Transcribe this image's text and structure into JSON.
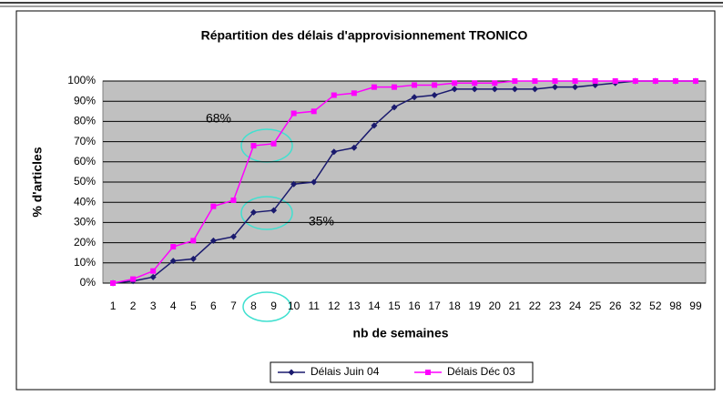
{
  "chart_data": {
    "type": "line",
    "title": "Répartition des délais d'approvisionnement TRONICO",
    "x_label": "nb de semaines",
    "y_label": "% d'articles",
    "categories": [
      "1",
      "2",
      "3",
      "4",
      "5",
      "6",
      "7",
      "8",
      "9",
      "10",
      "11",
      "12",
      "13",
      "14",
      "15",
      "16",
      "17",
      "18",
      "19",
      "20",
      "21",
      "22",
      "23",
      "24",
      "25",
      "26",
      "32",
      "52",
      "98",
      "99"
    ],
    "series": [
      {
        "name": "Délais Juin 04",
        "color": "#1a1a6e",
        "marker": "diamond",
        "values": [
          0,
          1,
          3,
          11,
          12,
          21,
          23,
          35,
          36,
          49,
          50,
          65,
          67,
          78,
          87,
          92,
          93,
          96,
          96,
          96,
          96,
          96,
          97,
          97,
          98,
          99,
          100,
          100,
          100,
          100
        ]
      },
      {
        "name": "Délais Déc 03",
        "color": "#ff00ff",
        "marker": "square",
        "values": [
          0,
          2,
          6,
          18,
          21,
          38,
          41,
          68,
          69,
          84,
          85,
          93,
          94,
          97,
          97,
          98,
          98,
          99,
          99,
          99,
          100,
          100,
          100,
          100,
          100,
          100,
          100,
          100,
          100,
          100
        ]
      }
    ],
    "annotations": [
      "68%",
      "35%"
    ],
    "ylim": [
      0,
      100
    ],
    "yticks": [
      {
        "value": 0,
        "label": "0%"
      },
      {
        "value": 10,
        "label": "10%"
      },
      {
        "value": 20,
        "label": "20%"
      },
      {
        "value": 30,
        "label": "30%"
      },
      {
        "value": 40,
        "label": "40%"
      },
      {
        "value": 50,
        "label": "50%"
      },
      {
        "value": 60,
        "label": "60%"
      },
      {
        "value": 70,
        "label": "70%"
      },
      {
        "value": 80,
        "label": "80%"
      },
      {
        "value": 90,
        "label": "90%"
      },
      {
        "value": 100,
        "label": "100%"
      }
    ],
    "grid": true,
    "legend": "bottom"
  }
}
